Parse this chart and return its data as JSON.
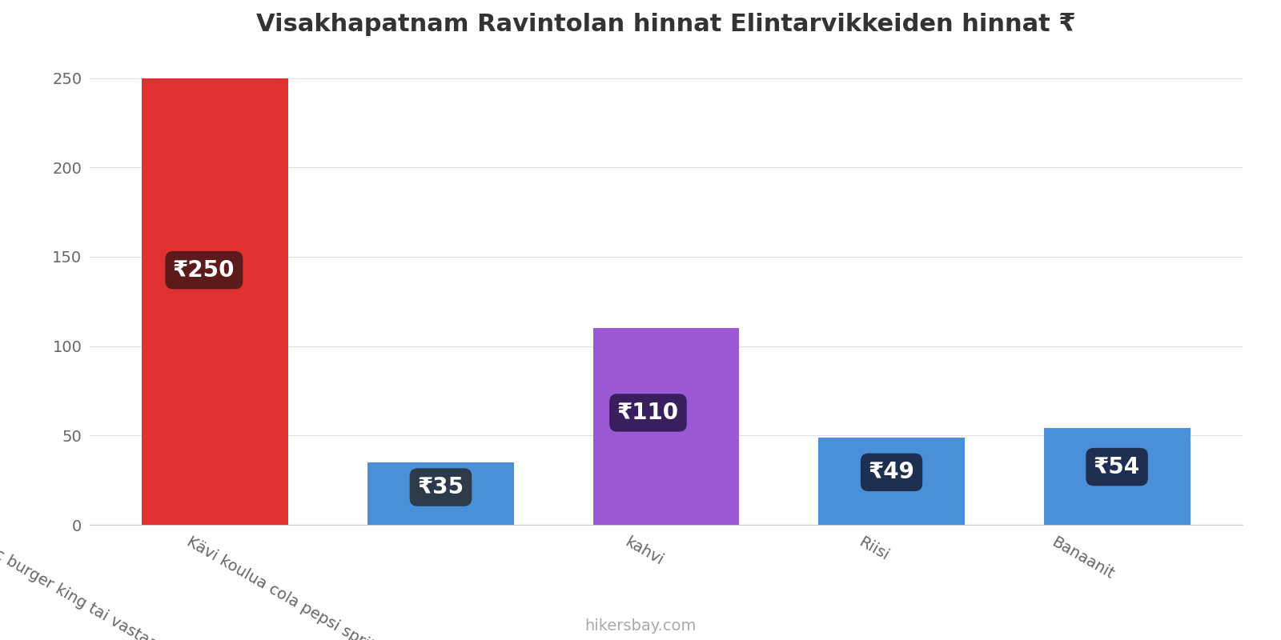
{
  "title": "Visakhapatnam Ravintolan hinnat Elintarvikkeiden hinnat ₹",
  "categories": [
    "mac burger king tai vastaava baari",
    "Kävi koulua cola pepsi sprite mirinda",
    "kahvi",
    "Riisi",
    "Banaanit"
  ],
  "values": [
    250,
    35,
    110,
    49,
    54
  ],
  "bar_colors": [
    "#e03030",
    "#4a90d9",
    "#9b59d4",
    "#4a90d9",
    "#4a90d9"
  ],
  "label_bg_colors": [
    "#5c1a1a",
    "#2d3a4a",
    "#3a1f5e",
    "#1e2f50",
    "#1e2f50"
  ],
  "label_text": [
    "₹250",
    "₹35",
    "₹110",
    "₹49",
    "₹54"
  ],
  "ylabel_vals": [
    0,
    50,
    100,
    150,
    200,
    250
  ],
  "ylim": [
    0,
    265
  ],
  "footer": "hikersbay.com",
  "title_fontsize": 22,
  "label_fontsize": 20,
  "tick_fontsize": 14,
  "footer_fontsize": 14,
  "xtick_rotation": -30,
  "background_color": "#ffffff",
  "bar_positions": [
    0,
    1,
    2,
    3,
    4
  ],
  "bar_width": 0.65
}
